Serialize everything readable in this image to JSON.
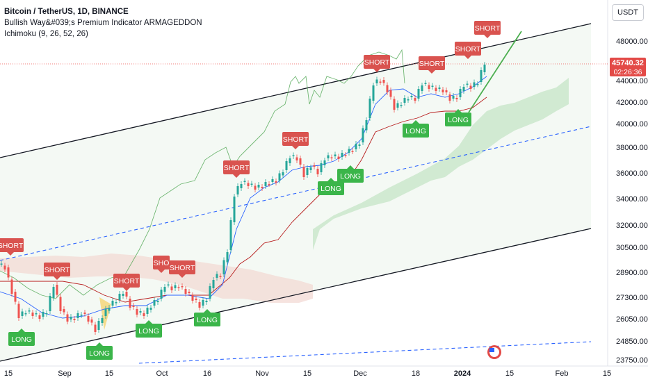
{
  "header": {
    "title": "Bitcoin / TetherUS, 1D, BINANCE",
    "indicator1": "Bullish Way&#039;s Premium Indicator ARMAGEDDON",
    "indicator2": "Ichimoku (9, 26, 52, 26)",
    "currency_button": "USDT"
  },
  "last_price": {
    "price": "45740.32",
    "countdown": "02:26:36"
  },
  "colors": {
    "up": "#26a69a",
    "down": "#ef5350",
    "short_marker": "#d9534f",
    "long_marker": "#3bb54a",
    "channel": "#131722",
    "midline": "#2962ff",
    "trend": "#4caf50",
    "tenkan": "#2962ff",
    "kijun": "#b71c1c",
    "chikou": "#43a047",
    "cloud_bull": "#c8e6c9",
    "cloud_bear": "#f3d9d4"
  },
  "chart_data": {
    "type": "candlestick",
    "y_axis_ticks": [
      "48000.00",
      "44000.00",
      "42000.00",
      "40000.00",
      "38000.00",
      "36000.00",
      "34000.00",
      "32000.00",
      "30500.00",
      "28900.00",
      "27300.00",
      "26050.00",
      "24850.00",
      "23750.00"
    ],
    "x_axis_ticks": [
      "15",
      "Sep",
      "15",
      "Oct",
      "16",
      "Nov",
      "15",
      "Dec",
      "18",
      "2024",
      "15",
      "Feb",
      "15"
    ],
    "signals": [
      {
        "label": "SHORT",
        "date": "Aug 15"
      },
      {
        "label": "LONG",
        "date": "Aug 17"
      },
      {
        "label": "SHORT",
        "date": "Aug 31"
      },
      {
        "label": "LONG",
        "date": "Sep 11"
      },
      {
        "label": "SHORT",
        "date": "Sep 19"
      },
      {
        "label": "LONG",
        "date": "Sep 27"
      },
      {
        "label": "SHO",
        "date": "Sep 30"
      },
      {
        "label": "SHORT",
        "date": "Oct 2"
      },
      {
        "label": "LONG",
        "date": "Oct 15"
      },
      {
        "label": "SHORT",
        "date": "Oct 25"
      },
      {
        "label": "SHORT",
        "date": "Nov 16"
      },
      {
        "label": "LONG",
        "date": "Nov 21"
      },
      {
        "label": "LONG",
        "date": "Nov 26"
      },
      {
        "label": "SHORT",
        "date": "Dec 8"
      },
      {
        "label": "LONG",
        "date": "Dec 18"
      },
      {
        "label": "SHORT",
        "date": "Dec 27"
      },
      {
        "label": "SHORT",
        "date": "Jan 3"
      },
      {
        "label": "LONG",
        "date": "Jan 3"
      },
      {
        "label": "SHORT",
        "date": "Jan 8"
      }
    ]
  }
}
